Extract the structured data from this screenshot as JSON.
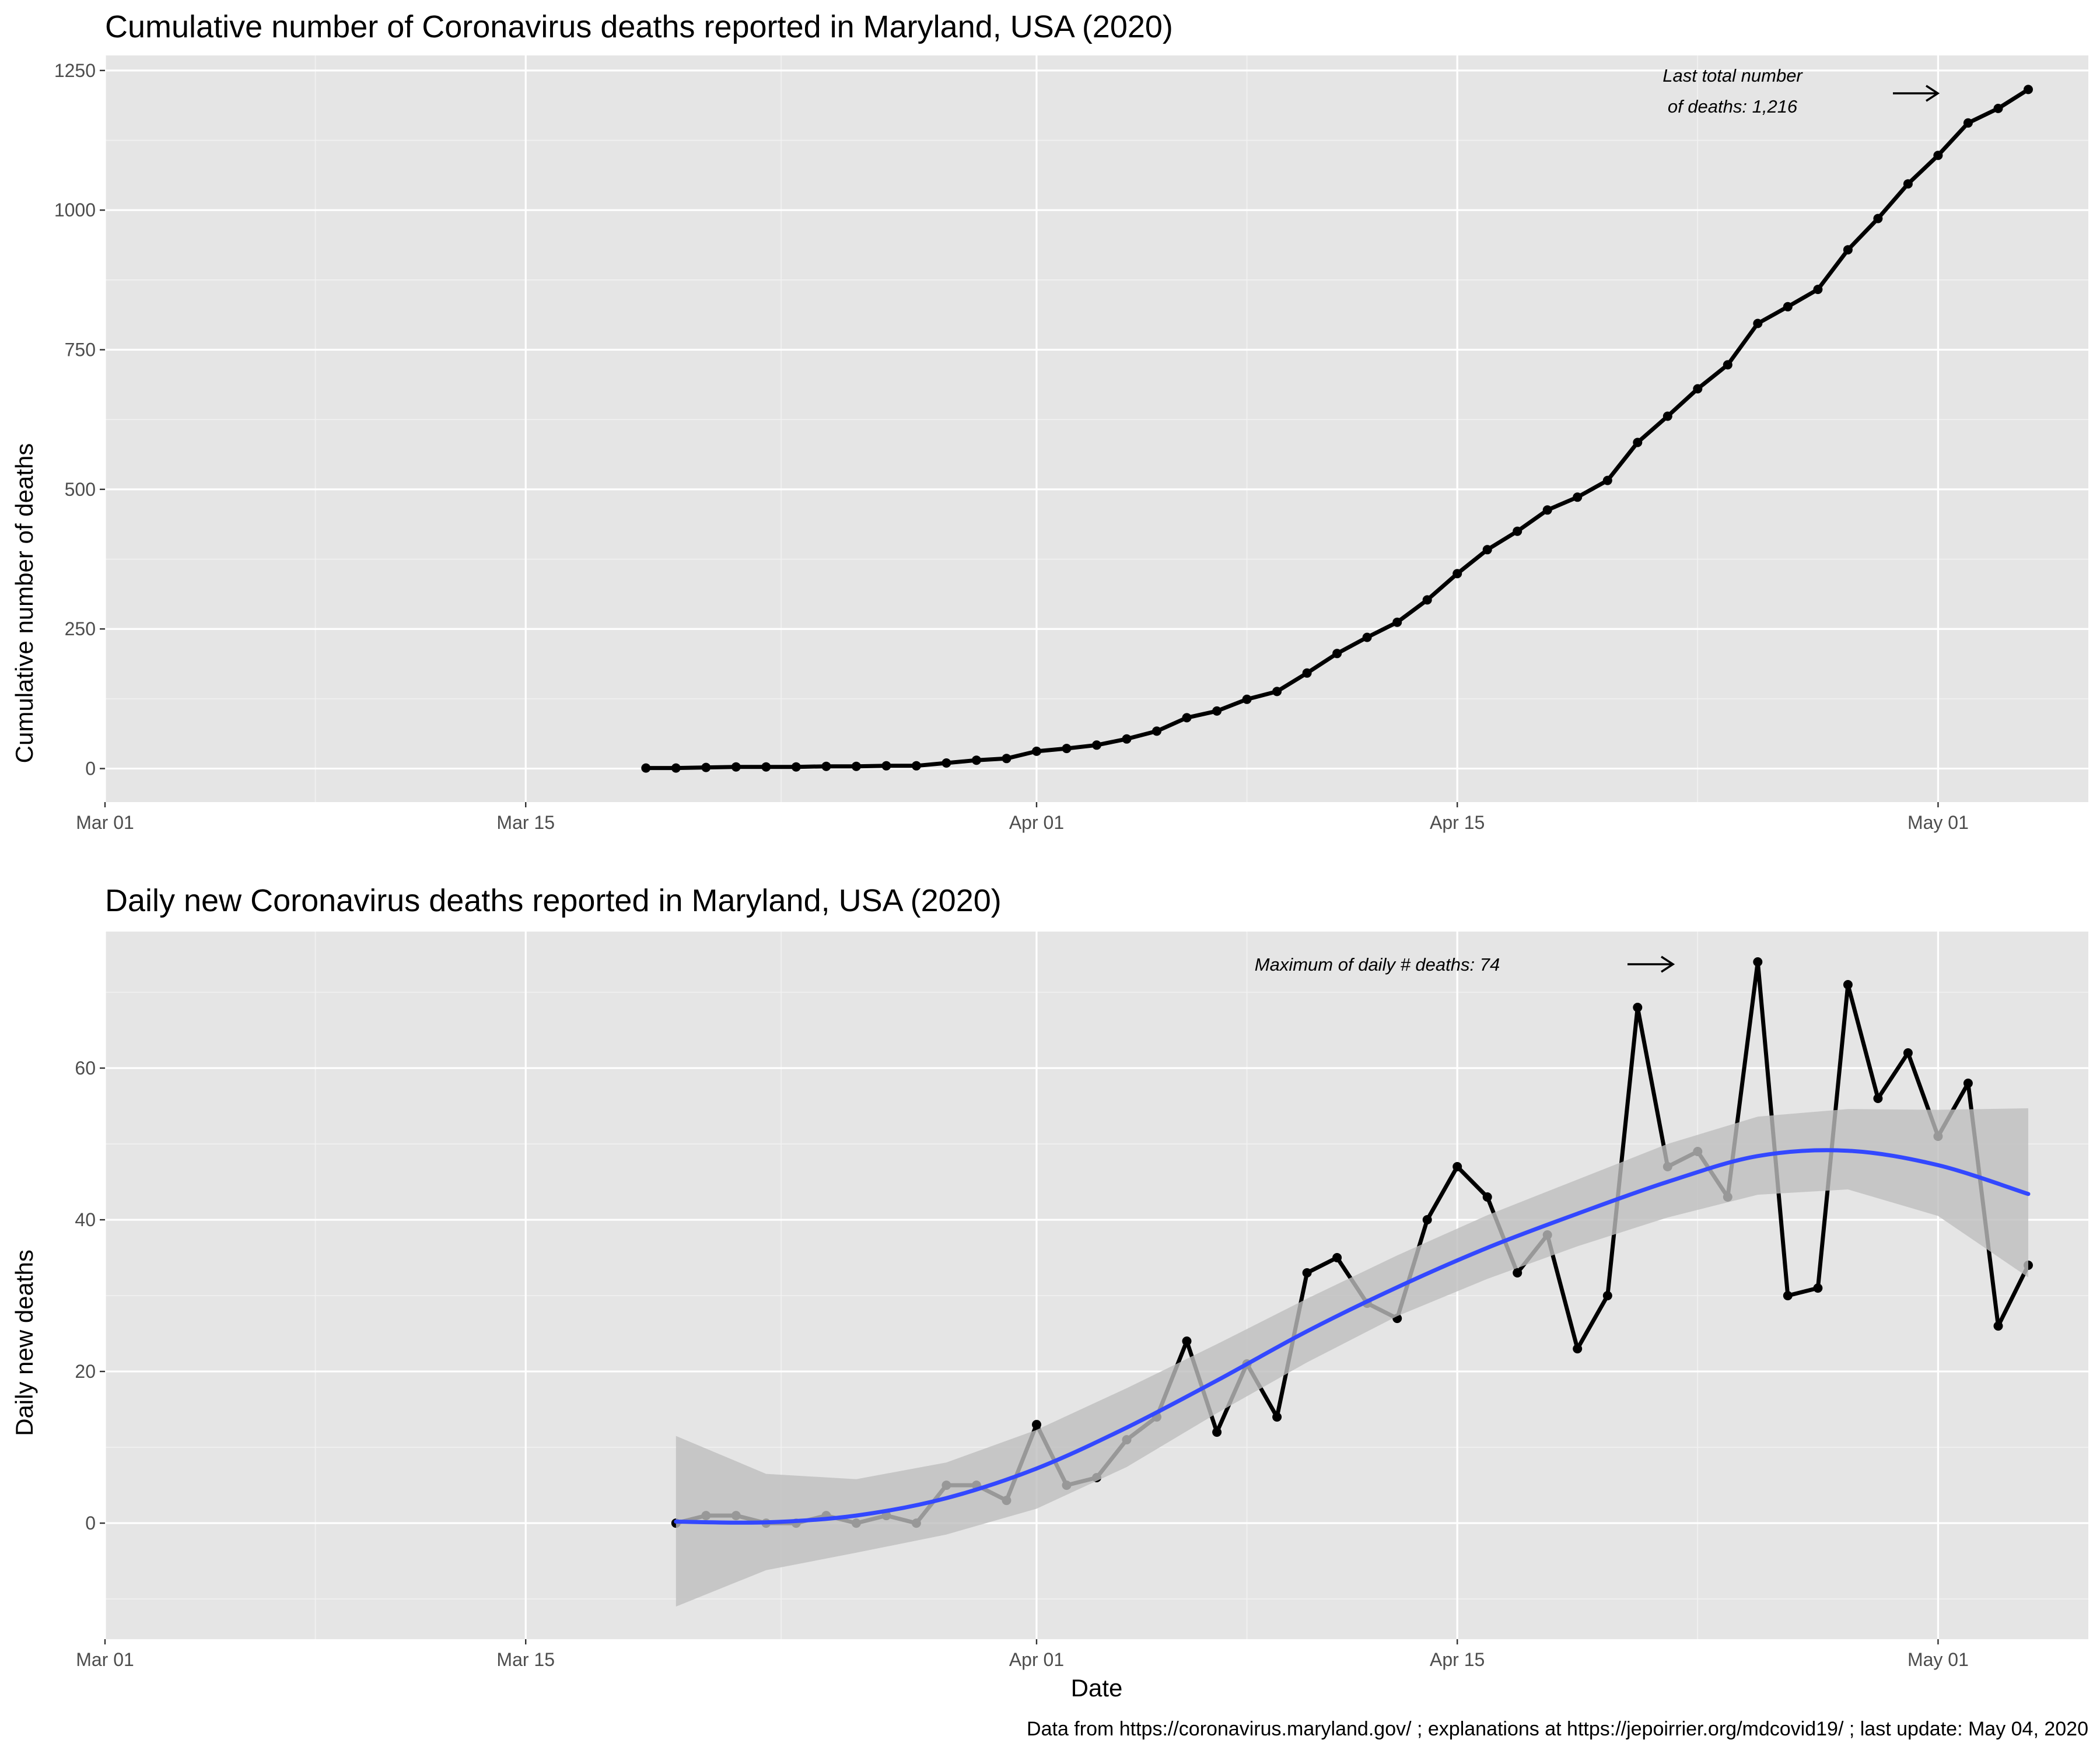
{
  "caption": "Data from https://coronavirus.maryland.gov/ ; explanations at https://jepoirrier.org/mdcovid19/ ; last update: May 04, 2020",
  "chart_data": [
    {
      "type": "line",
      "title": "Cumulative number of Coronavirus deaths reported in Maryland, USA (2020)",
      "xlabel": "",
      "ylabel": "Cumulative number of deaths",
      "x_ticks": [
        {
          "date": "2020-03-01",
          "label": "Mar 01"
        },
        {
          "date": "2020-03-15",
          "label": "Mar 15"
        },
        {
          "date": "2020-04-01",
          "label": "Apr 01"
        },
        {
          "date": "2020-04-15",
          "label": "Apr 15"
        },
        {
          "date": "2020-05-01",
          "label": "May 01"
        }
      ],
      "y_ticks": [
        0,
        250,
        500,
        750,
        1000,
        1250
      ],
      "xlim": [
        "2020-03-01",
        "2020-05-06"
      ],
      "ylim": [
        -60,
        1277
      ],
      "grid": true,
      "annotation": {
        "lines": [
          "Last total number",
          "of deaths: 1,216"
        ],
        "arrow": true
      },
      "series": [
        {
          "color": "#000000",
          "x": [
            "2020-03-19",
            "2020-03-20",
            "2020-03-21",
            "2020-03-22",
            "2020-03-23",
            "2020-03-24",
            "2020-03-25",
            "2020-03-26",
            "2020-03-27",
            "2020-03-28",
            "2020-03-29",
            "2020-03-30",
            "2020-03-31",
            "2020-04-01",
            "2020-04-02",
            "2020-04-03",
            "2020-04-04",
            "2020-04-05",
            "2020-04-06",
            "2020-04-07",
            "2020-04-08",
            "2020-04-09",
            "2020-04-10",
            "2020-04-11",
            "2020-04-12",
            "2020-04-13",
            "2020-04-14",
            "2020-04-15",
            "2020-04-16",
            "2020-04-17",
            "2020-04-18",
            "2020-04-19",
            "2020-04-20",
            "2020-04-21",
            "2020-04-22",
            "2020-04-23",
            "2020-04-24",
            "2020-04-25",
            "2020-04-26",
            "2020-04-27",
            "2020-04-28",
            "2020-04-29",
            "2020-04-30",
            "2020-05-01",
            "2020-05-02",
            "2020-05-03",
            "2020-05-04"
          ],
          "y": [
            1,
            1,
            2,
            3,
            3,
            3,
            4,
            4,
            5,
            5,
            10,
            15,
            18,
            31,
            36,
            42,
            53,
            67,
            91,
            103,
            124,
            138,
            171,
            206,
            235,
            262,
            302,
            349,
            392,
            425,
            463,
            486,
            516,
            584,
            631,
            680,
            723,
            797,
            827,
            858,
            929,
            985,
            1047,
            1098,
            1156,
            1182,
            1216
          ]
        }
      ]
    },
    {
      "type": "line",
      "title": "Daily new Coronavirus deaths reported in Maryland, USA (2020)",
      "xlabel": "Date",
      "ylabel": "Daily new deaths",
      "x_ticks": [
        {
          "date": "2020-03-01",
          "label": "Mar 01"
        },
        {
          "date": "2020-03-15",
          "label": "Mar 15"
        },
        {
          "date": "2020-04-01",
          "label": "Apr 01"
        },
        {
          "date": "2020-04-15",
          "label": "Apr 15"
        },
        {
          "date": "2020-05-01",
          "label": "May 01"
        }
      ],
      "y_ticks": [
        0,
        20,
        40,
        60
      ],
      "xlim": [
        "2020-03-01",
        "2020-05-06"
      ],
      "ylim": [
        -15.3,
        78
      ],
      "grid": true,
      "annotation": {
        "lines": [
          "Maximum of daily # deaths: 74"
        ],
        "arrow": true
      },
      "series": [
        {
          "color": "#000000",
          "x": [
            "2020-03-20",
            "2020-03-21",
            "2020-03-22",
            "2020-03-23",
            "2020-03-24",
            "2020-03-25",
            "2020-03-26",
            "2020-03-27",
            "2020-03-28",
            "2020-03-29",
            "2020-03-30",
            "2020-03-31",
            "2020-04-01",
            "2020-04-02",
            "2020-04-03",
            "2020-04-04",
            "2020-04-05",
            "2020-04-06",
            "2020-04-07",
            "2020-04-08",
            "2020-04-09",
            "2020-04-10",
            "2020-04-11",
            "2020-04-12",
            "2020-04-13",
            "2020-04-14",
            "2020-04-15",
            "2020-04-16",
            "2020-04-17",
            "2020-04-18",
            "2020-04-19",
            "2020-04-20",
            "2020-04-21",
            "2020-04-22",
            "2020-04-23",
            "2020-04-24",
            "2020-04-25",
            "2020-04-26",
            "2020-04-27",
            "2020-04-28",
            "2020-04-29",
            "2020-04-30",
            "2020-05-01",
            "2020-05-02",
            "2020-05-03",
            "2020-05-04"
          ],
          "y": [
            0,
            1,
            1,
            0,
            0,
            1,
            0,
            1,
            0,
            5,
            5,
            3,
            13,
            5,
            6,
            11,
            14,
            24,
            12,
            21,
            14,
            33,
            35,
            29,
            27,
            40,
            47,
            43,
            33,
            38,
            23,
            30,
            68,
            47,
            49,
            43,
            74,
            30,
            31,
            71,
            56,
            62,
            51,
            58,
            26,
            34
          ]
        }
      ],
      "smooth": {
        "color": "#3348ff",
        "band_color": "#bebebe",
        "x": [
          "2020-03-20",
          "2020-03-23",
          "2020-03-26",
          "2020-03-29",
          "2020-04-01",
          "2020-04-04",
          "2020-04-07",
          "2020-04-10",
          "2020-04-13",
          "2020-04-16",
          "2020-04-19",
          "2020-04-22",
          "2020-04-25",
          "2020-04-28",
          "2020-05-01",
          "2020-05-04"
        ],
        "fit": [
          0.2,
          0.1,
          1.0,
          3.3,
          7.2,
          12.6,
          18.8,
          25.3,
          31.1,
          36.3,
          40.8,
          45.0,
          48.4,
          49.1,
          47.2,
          43.4
        ],
        "lower": [
          -11.0,
          -6.2,
          -3.9,
          -1.5,
          1.9,
          7.4,
          14.5,
          21.2,
          27.3,
          32.2,
          36.5,
          40.3,
          43.3,
          44.0,
          40.5,
          32.4
        ],
        "upper": [
          11.5,
          6.5,
          5.8,
          8.0,
          12.3,
          17.8,
          23.6,
          29.6,
          35.3,
          40.6,
          45.3,
          50.0,
          53.6,
          54.6,
          54.5,
          54.7
        ]
      }
    }
  ]
}
